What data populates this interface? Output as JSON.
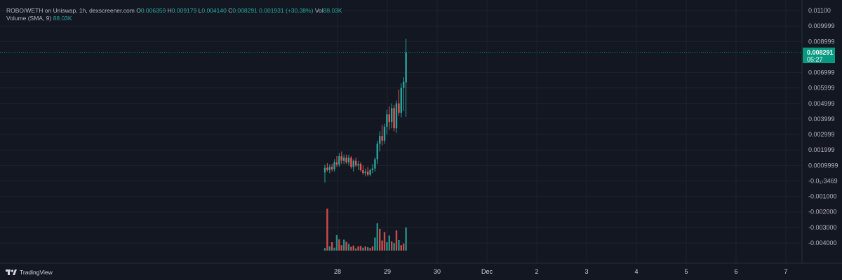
{
  "legend": {
    "title": "ROBO/WETH on Uniswap, 1h, dexscreener.com",
    "o_key": "O",
    "o_val": "0.006359",
    "h_key": "H",
    "h_val": "0.009179",
    "l_key": "L",
    "l_val": "0.004140",
    "c_key": "C",
    "c_val": "0.008291",
    "change": "0.001931 (+30.38%)",
    "vol_key": "Vol",
    "vol_val": "88.03K",
    "volume_label": "Volume (SMA, 9)",
    "volume_val": "88.03K"
  },
  "badge": {
    "price": "0.008291",
    "countdown": "05:27"
  },
  "brand": "TradingView",
  "colors": {
    "up": "#26a69a",
    "down": "#ef5350",
    "background": "#131722",
    "grid": "#1e222d",
    "badge": "#089981"
  },
  "chart_data": {
    "type": "candlestick",
    "symbol": "ROBO/WETH",
    "interval": "1h",
    "y_axis_labels": [
      "0.01100",
      "0.009999",
      "0.008999",
      "0.006999",
      "0.005999",
      "0.004999",
      "0.003999",
      "0.002999",
      "0.001999",
      "0.0009999",
      "-0.0₁₇3469",
      "-0.001000",
      "-0.002000",
      "-0.003000",
      "-0.004000"
    ],
    "y_tick_values": [
      0.011,
      0.01,
      0.009,
      0.007,
      0.006,
      0.005,
      0.004,
      0.003,
      0.002,
      0.001,
      0.0,
      -0.001,
      -0.002,
      -0.003,
      -0.004
    ],
    "ylim": [
      -0.0045,
      0.0112
    ],
    "x_tick_labels": [
      "28",
      "29",
      "30",
      "Dec",
      "2",
      "3",
      "4",
      "5",
      "6",
      "7"
    ],
    "last_price": 0.008291,
    "candles": [
      [
        0.00055,
        0.00105,
        -0.0001,
        0.00085
      ],
      [
        0.00085,
        0.00115,
        0.0006,
        0.0007
      ],
      [
        0.0007,
        0.00105,
        0.0005,
        0.0009
      ],
      [
        0.0009,
        0.0011,
        0.0006,
        0.00075
      ],
      [
        0.00075,
        0.0014,
        0.0006,
        0.0012
      ],
      [
        0.0012,
        0.0016,
        0.0009,
        0.00105
      ],
      [
        0.00105,
        0.0018,
        0.0009,
        0.0016
      ],
      [
        0.0016,
        0.0019,
        0.0011,
        0.0013
      ],
      [
        0.0013,
        0.0017,
        0.0011,
        0.0015
      ],
      [
        0.0015,
        0.0017,
        0.0011,
        0.0012
      ],
      [
        0.0012,
        0.0017,
        0.001,
        0.0015
      ],
      [
        0.0015,
        0.0016,
        0.0008,
        0.0009
      ],
      [
        0.0009,
        0.0014,
        0.0006,
        0.0013
      ],
      [
        0.0013,
        0.0015,
        0.0009,
        0.001
      ],
      [
        0.001,
        0.0013,
        0.0007,
        0.0011
      ],
      [
        0.0011,
        0.0012,
        0.0006,
        0.0007
      ],
      [
        0.0007,
        0.001,
        0.0004,
        0.0005
      ],
      [
        0.0005,
        0.0008,
        0.0003,
        0.0006
      ],
      [
        0.0006,
        0.0009,
        0.0003,
        0.0004
      ],
      [
        0.0004,
        0.0008,
        0.0003,
        0.0007
      ],
      [
        0.0007,
        0.0011,
        0.0005,
        0.0008
      ],
      [
        0.0008,
        0.0015,
        0.0006,
        0.0014
      ],
      [
        0.0014,
        0.0026,
        0.0011,
        0.0024
      ],
      [
        0.0024,
        0.0032,
        0.0019,
        0.0029
      ],
      [
        0.0029,
        0.0036,
        0.0023,
        0.0026
      ],
      [
        0.0026,
        0.0037,
        0.0024,
        0.0035
      ],
      [
        0.0035,
        0.0046,
        0.003,
        0.0043
      ],
      [
        0.0043,
        0.0048,
        0.0033,
        0.0038
      ],
      [
        0.0038,
        0.005,
        0.0034,
        0.0047
      ],
      [
        0.0047,
        0.0049,
        0.0032,
        0.0034
      ],
      [
        0.0034,
        0.0052,
        0.0031,
        0.005
      ],
      [
        0.005,
        0.0059,
        0.0042,
        0.0044
      ],
      [
        0.0044,
        0.0063,
        0.0041,
        0.006
      ],
      [
        0.006,
        0.0067,
        0.0045,
        0.0064
      ],
      [
        0.006359,
        0.009179,
        0.00414,
        0.008291
      ]
    ],
    "volumes": [
      [
        6,
        1
      ],
      [
        100,
        0
      ],
      [
        10,
        1
      ],
      [
        20,
        0
      ],
      [
        7,
        1
      ],
      [
        37,
        1
      ],
      [
        27,
        0
      ],
      [
        13,
        0
      ],
      [
        26,
        1
      ],
      [
        21,
        0
      ],
      [
        16,
        1
      ],
      [
        9,
        0
      ],
      [
        12,
        0
      ],
      [
        5,
        1
      ],
      [
        10,
        0
      ],
      [
        11,
        0
      ],
      [
        7,
        1
      ],
      [
        10,
        0
      ],
      [
        8,
        1
      ],
      [
        6,
        0
      ],
      [
        10,
        0
      ],
      [
        31,
        1
      ],
      [
        65,
        1
      ],
      [
        52,
        0
      ],
      [
        24,
        0
      ],
      [
        44,
        0
      ],
      [
        20,
        1
      ],
      [
        36,
        1
      ],
      [
        22,
        0
      ],
      [
        18,
        1
      ],
      [
        48,
        0
      ],
      [
        25,
        1
      ],
      [
        13,
        0
      ],
      [
        17,
        0
      ],
      [
        55,
        1
      ]
    ]
  }
}
